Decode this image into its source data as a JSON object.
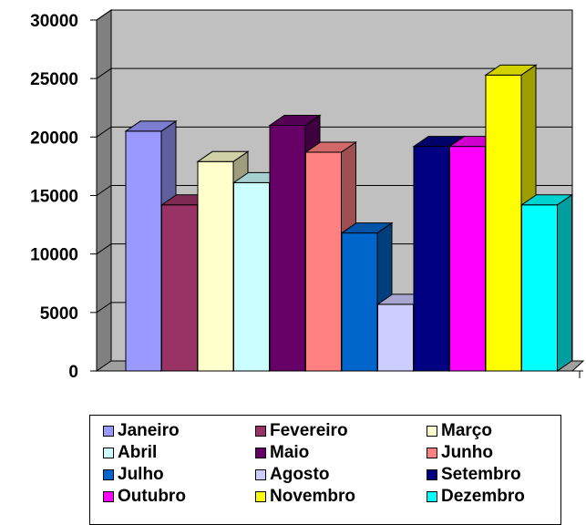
{
  "chart_data": {
    "type": "bar",
    "categories": [
      "Janeiro",
      "Fevereiro",
      "Março",
      "Abril",
      "Maio",
      "Junho",
      "Julho",
      "Agosto",
      "Setembro",
      "Outubro",
      "Novembro",
      "Dezembro"
    ],
    "series": [
      {
        "values": [
          20500,
          14200,
          17900,
          16100,
          21000,
          18700,
          11800,
          5700,
          19200,
          19200,
          25300,
          14200
        ]
      }
    ],
    "colors": [
      "#9999ff",
      "#993366",
      "#ffffcc",
      "#ccffff",
      "#660066",
      "#ff8080",
      "#0066cc",
      "#ccccff",
      "#000080",
      "#ff00ff",
      "#ffff00",
      "#00ffff"
    ],
    "ylim": [
      0,
      30000
    ],
    "yticks": [
      "0",
      "5000",
      "10000",
      "15000",
      "20000",
      "25000",
      "30000"
    ],
    "grid": true,
    "legend_position": "bottom",
    "style": "3d-column"
  }
}
